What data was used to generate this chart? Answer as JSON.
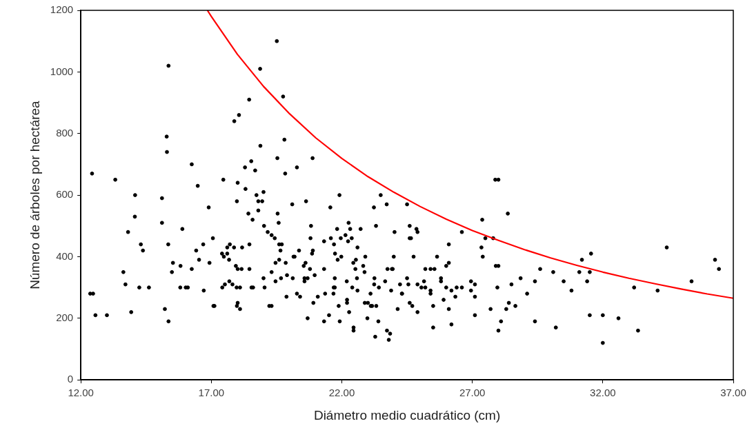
{
  "chart_data": {
    "type": "scatter",
    "xlabel": "Diámetro medio cuadrático (cm)",
    "ylabel": "Número de árboles por hectárea",
    "xlim": [
      12,
      37
    ],
    "xticks": [
      {
        "value": 12,
        "label": "12.00"
      },
      {
        "value": 17,
        "label": "17.00"
      },
      {
        "value": 22,
        "label": "22.00"
      },
      {
        "value": 27,
        "label": "27.00"
      },
      {
        "value": 32,
        "label": "32.00"
      },
      {
        "value": 37,
        "label": "37.00"
      }
    ],
    "ylim": [
      0,
      1200
    ],
    "yticks": [
      0,
      200,
      400,
      600,
      800,
      1000,
      1200
    ],
    "grid": false,
    "legend": false,
    "series": [
      {
        "type": "scatter",
        "marker": "circle",
        "color": "#000000",
        "x": [
          19.51,
          18.87,
          18.45,
          19.75,
          19.8,
          18.88,
          19.53,
          20.88,
          18.53,
          18.68,
          20.28,
          19.83,
          18.73,
          19.0,
          18.8,
          18.95,
          21.91,
          23.49,
          18.8,
          20.1,
          20.63,
          21.56,
          23.23,
          23.72,
          18.42,
          18.58,
          19.54,
          19.58,
          19.02,
          20.82,
          19.16,
          19.31,
          19.43,
          19.6,
          19.7,
          18.46,
          19.65,
          20.36,
          20.8,
          20.89,
          20.86,
          20.15,
          20.19,
          19.6,
          19.46,
          19.85,
          20.61,
          20.54,
          20.78,
          18.46,
          19.31,
          19.0,
          19.67,
          19.9,
          20.12,
          20.57,
          20.69,
          20.57,
          19.46,
          20.96,
          18.54,
          18.6,
          19.04,
          19.88,
          20.28,
          20.4,
          19.22,
          19.31,
          20.69,
          20.91,
          21.08,
          21.32,
          21.32,
          21.36,
          21.58,
          21.7,
          21.82,
          21.96,
          21.74,
          21.84,
          21.98,
          21.73,
          21.69,
          21.73,
          21.68,
          21.51,
          21.32,
          21.88,
          21.92,
          22.14,
          22.26,
          22.32,
          22.24,
          22.38,
          22.72,
          22.6,
          22.54,
          22.44,
          22.52,
          22.9,
          22.82,
          22.87,
          22.58,
          22.19,
          22.4,
          22.6,
          23.31,
          24.02,
          23.25,
          23.24,
          23.42,
          23.66,
          23.75,
          23.92,
          23.95,
          23.99,
          23.89,
          23.1,
          22.2,
          22.2,
          22.28,
          22.45,
          22.45,
          22.88,
          23.0,
          23.11,
          23.16,
          23.32,
          22.98,
          23.4,
          23.28,
          23.73,
          23.85,
          23.8,
          24.14,
          24.23,
          24.31,
          27.88,
          28.0,
          28.36,
          27.38,
          26.6,
          27.8,
          27.5,
          27.35,
          27.4,
          27.9,
          28.0,
          27.96,
          28.5,
          28.4,
          28.3,
          28.65,
          28.1,
          28.0,
          28.85,
          29.1,
          29.4,
          29.4,
          29.6,
          30.1,
          30.2,
          30.5,
          30.8,
          31.1,
          31.2,
          31.55,
          31.5,
          31.4,
          31.5,
          32.0,
          32.0,
          32.6,
          33.2,
          33.35,
          34.1,
          34.45,
          35.4,
          36.3,
          36.45,
          24.5,
          24.6,
          24.6,
          24.65,
          24.86,
          24.9,
          24.75,
          24.5,
          24.55,
          24.3,
          24.6,
          24.7,
          24.9,
          24.9,
          25.05,
          25.15,
          25.2,
          25.2,
          25.4,
          25.55,
          25.65,
          25.4,
          25.4,
          25.5,
          25.5,
          25.8,
          25.8,
          25.9,
          26.0,
          26.0,
          26.1,
          26.1,
          26.2,
          26.1,
          26.2,
          26.35,
          26.4,
          26.6,
          26.95,
          26.95,
          27.1,
          27.1,
          27.1,
          27.7,
          15.36,
          18.06,
          17.88,
          15.29,
          15.3,
          18.29,
          16.25,
          12.43,
          13.32,
          17.46,
          18.01,
          16.48,
          18.31,
          14.08,
          15.11,
          17.98,
          16.9,
          14.07,
          15.11,
          15.89,
          13.81,
          17.06,
          14.3,
          15.35,
          16.69,
          17.71,
          14.38,
          16.42,
          17.61,
          17.87,
          18.18,
          17.41,
          17.61,
          17.48,
          17.68,
          16.53,
          16.93,
          15.53,
          15.82,
          17.94,
          18.01,
          18.16,
          16.25,
          13.63,
          15.49,
          13.71,
          17.52,
          17.69,
          17.81,
          14.24,
          14.61,
          15.81,
          16.02,
          16.1,
          17.42,
          17.97,
          18.1,
          12.36,
          12.47,
          16.71,
          17.08,
          17.12,
          18.01,
          17.98,
          18.1,
          12.56,
          13.0,
          13.93,
          15.22,
          15.36
        ],
        "values": [
          1100,
          1010,
          910,
          920,
          780,
          760,
          720,
          720,
          710,
          680,
          690,
          670,
          600,
          610,
          580,
          580,
          600,
          600,
          550,
          570,
          580,
          560,
          560,
          570,
          540,
          520,
          540,
          510,
          500,
          500,
          480,
          470,
          460,
          440,
          440,
          440,
          420,
          420,
          460,
          420,
          410,
          400,
          400,
          390,
          380,
          380,
          380,
          370,
          360,
          360,
          350,
          330,
          330,
          340,
          330,
          330,
          330,
          320,
          320,
          340,
          300,
          300,
          300,
          270,
          280,
          270,
          240,
          240,
          200,
          250,
          270,
          360,
          450,
          280,
          460,
          440,
          490,
          460,
          410,
          390,
          400,
          330,
          300,
          300,
          280,
          210,
          190,
          240,
          190,
          470,
          510,
          490,
          450,
          460,
          490,
          430,
          390,
          380,
          360,
          400,
          370,
          350,
          330,
          320,
          300,
          290,
          500,
          480,
          330,
          310,
          300,
          320,
          360,
          360,
          360,
          400,
          290,
          280,
          260,
          250,
          220,
          170,
          160,
          250,
          250,
          240,
          240,
          240,
          200,
          190,
          140,
          160,
          150,
          130,
          230,
          310,
          280,
          650,
          650,
          540,
          520,
          480,
          460,
          460,
          430,
          400,
          370,
          370,
          300,
          310,
          250,
          230,
          240,
          190,
          160,
          330,
          280,
          320,
          190,
          360,
          350,
          170,
          320,
          290,
          350,
          390,
          410,
          350,
          320,
          210,
          210,
          120,
          200,
          300,
          160,
          290,
          430,
          320,
          390,
          360,
          570,
          500,
          460,
          460,
          490,
          480,
          400,
          330,
          310,
          280,
          250,
          240,
          220,
          310,
          300,
          320,
          300,
          360,
          360,
          360,
          400,
          290,
          280,
          240,
          170,
          330,
          320,
          260,
          300,
          370,
          380,
          440,
          290,
          230,
          180,
          270,
          300,
          300,
          320,
          290,
          310,
          270,
          210,
          230,
          1020,
          860,
          840,
          790,
          740,
          690,
          700,
          670,
          650,
          650,
          640,
          630,
          620,
          600,
          590,
          580,
          560,
          530,
          510,
          490,
          480,
          460,
          440,
          440,
          440,
          440,
          420,
          420,
          430,
          430,
          430,
          410,
          410,
          400,
          390,
          390,
          380,
          380,
          370,
          370,
          360,
          360,
          360,
          350,
          350,
          310,
          310,
          320,
          310,
          300,
          300,
          300,
          300,
          300,
          300,
          300,
          300,
          280,
          280,
          290,
          240,
          240,
          250,
          240,
          230,
          210,
          210,
          220,
          230,
          190
        ]
      },
      {
        "type": "line",
        "marker": "none",
        "line_style": "solid",
        "color": "#ff0000",
        "x": [
          16.85,
          17,
          18,
          19,
          20,
          21,
          22,
          23,
          24,
          25,
          26,
          27,
          28,
          29,
          30,
          31,
          32,
          33,
          34,
          35,
          36,
          37
        ],
        "values": [
          1200,
          1180,
          1057,
          953,
          864,
          786,
          719,
          660,
          609,
          563,
          522,
          485,
          453,
          423,
          396,
          372,
          350,
          330,
          312,
          295,
          279,
          265
        ]
      }
    ]
  }
}
